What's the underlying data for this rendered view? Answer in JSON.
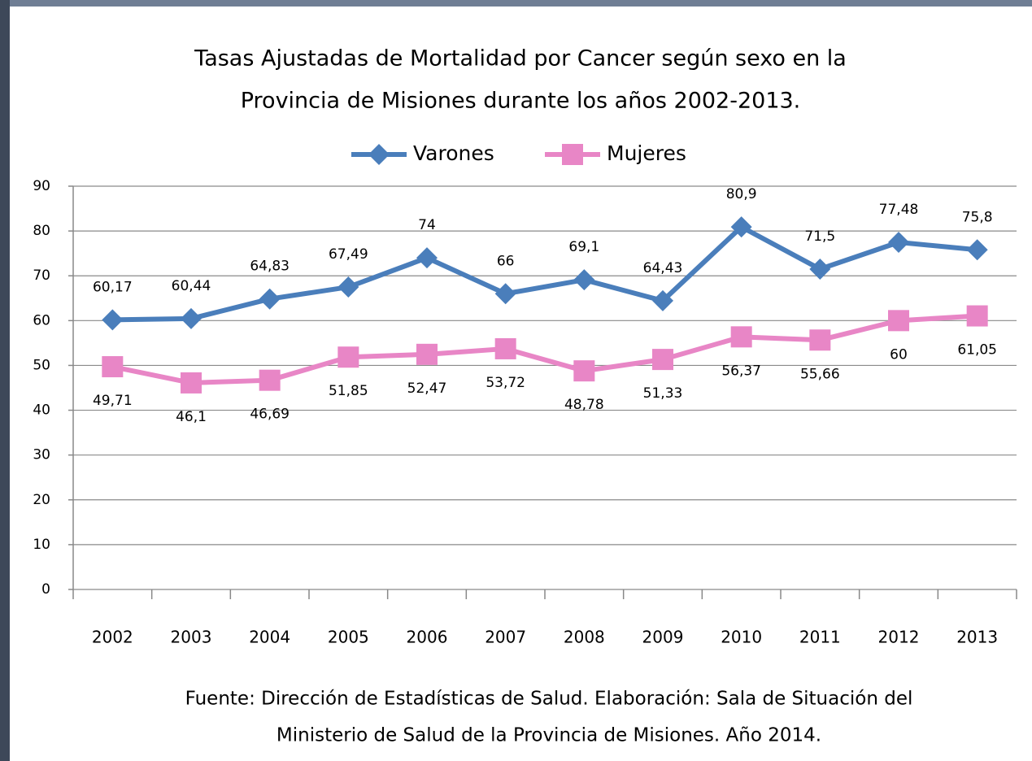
{
  "chart_data": {
    "type": "line",
    "title": [
      "Tasas Ajustadas de Mortalidad por Cancer según sexo en la",
      "Provincia de Misiones durante los años 2002-2013."
    ],
    "categories": [
      "2002",
      "2003",
      "2004",
      "2005",
      "2006",
      "2007",
      "2008",
      "2009",
      "2010",
      "2011",
      "2012",
      "2013"
    ],
    "series": [
      {
        "name": "Varones",
        "color": "#4a7ebb",
        "marker": "diamond",
        "values": [
          60.17,
          60.44,
          64.83,
          67.49,
          74,
          66,
          69.1,
          64.43,
          80.9,
          71.5,
          77.48,
          75.8
        ],
        "value_labels": [
          "60,17",
          "60,44",
          "64,83",
          "67,49",
          "74",
          "66",
          "69,1",
          "64,43",
          "80,9",
          "71,5",
          "77,48",
          "75,8"
        ]
      },
      {
        "name": "Mujeres",
        "color": "#e886c6",
        "marker": "square",
        "values": [
          49.71,
          46.1,
          46.69,
          51.85,
          52.47,
          53.72,
          48.78,
          51.33,
          56.37,
          55.66,
          60,
          61.05
        ],
        "value_labels": [
          "49,71",
          "46,1",
          "46,69",
          "51,85",
          "52,47",
          "53,72",
          "48,78",
          "51,33",
          "56,37",
          "55,66",
          "60",
          "61,05"
        ]
      }
    ],
    "ylim": [
      0,
      90
    ],
    "yticks": [
      0,
      10,
      20,
      30,
      40,
      50,
      60,
      70,
      80,
      90
    ],
    "grid": true,
    "legend": "top",
    "source": [
      "Fuente: Dirección de Estadísticas de Salud. Elaboración: Sala de Situación del",
      "Ministerio de Salud  de la Provincia de Misiones. Año 2014."
    ]
  }
}
